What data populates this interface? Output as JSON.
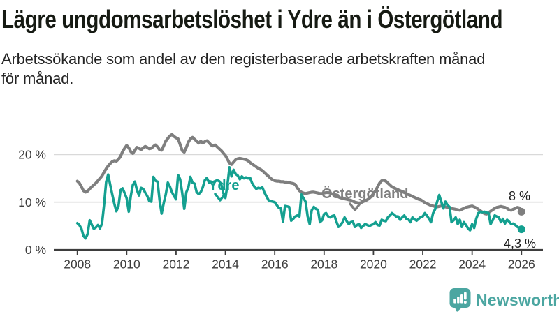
{
  "header": {
    "title": "Lägre ungdomsarbetslöshet i Ydre än i Östergötland",
    "subtitle_line_1": "Arbetssökande som andel av den registerbaserade arbetskraften månad",
    "subtitle_line_2": "för månad."
  },
  "chart_data": {
    "type": "line",
    "title": "Lägre ungdomsarbetslöshet i Ydre än i Östergötland",
    "unit": "%",
    "grid": "horizontal",
    "legend_position": "inline-labels",
    "colors": {
      "axis": "#3D3D3D",
      "gridline": "#D9D9D9",
      "tick_text": "#3D3D3D",
      "value_text": "#1D1D1D"
    },
    "x": {
      "start_year": 2008,
      "interval_months": 1,
      "tick_years": [
        2008,
        2010,
        2012,
        2014,
        2016,
        2018,
        2020,
        2022,
        2024,
        2026
      ],
      "tick_labels": [
        "2008",
        "2010",
        "2012",
        "2014",
        "2016",
        "2018",
        "2020",
        "2022",
        "2024",
        "2026"
      ]
    },
    "y": {
      "tick_values": [
        0,
        10,
        20
      ],
      "tick_labels": [
        "0 %",
        "10 %",
        "20 %"
      ],
      "range": [
        0,
        26
      ]
    },
    "series": [
      {
        "name": "Östergötland",
        "color": "#7F7F7F",
        "end_label": "8 %",
        "end_value": 8.0,
        "values": [
          14.4,
          14.0,
          13.2,
          12.4,
          12.1,
          12.3,
          12.8,
          13.2,
          13.6,
          14.0,
          14.5,
          15.0,
          15.5,
          16.3,
          17.0,
          17.6,
          18.1,
          18.5,
          18.7,
          18.6,
          19.0,
          19.6,
          20.6,
          21.3,
          21.9,
          21.4,
          20.6,
          20.2,
          20.9,
          21.5,
          21.3,
          21.0,
          21.4,
          21.7,
          21.5,
          21.2,
          21.3,
          21.7,
          22.0,
          21.6,
          21.0,
          20.9,
          21.8,
          22.8,
          23.4,
          23.9,
          24.2,
          23.8,
          23.5,
          23.3,
          22.1,
          20.8,
          20.5,
          21.5,
          22.6,
          23.3,
          23.6,
          23.2,
          22.8,
          22.4,
          22.8,
          22.4,
          22.7,
          22.9,
          22.5,
          22.0,
          21.8,
          22.0,
          21.6,
          21.2,
          20.8,
          20.3,
          19.8,
          19.0,
          18.2,
          17.9,
          18.4,
          18.9,
          19.1,
          19.2,
          19.1,
          19.0,
          18.9,
          18.7,
          18.3,
          18.0,
          17.7,
          17.4,
          17.1,
          16.9,
          16.6,
          16.2,
          15.8,
          15.4,
          15.0,
          14.7,
          14.5,
          14.4,
          14.4,
          14.3,
          14.3,
          14.2,
          14.2,
          14.1,
          14.0,
          13.9,
          13.7,
          13.0,
          12.4,
          12.1,
          11.9,
          11.8,
          11.9,
          12.0,
          12.1,
          12.1,
          12.0,
          11.9,
          11.8,
          11.8,
          11.9,
          12.0,
          12.0,
          11.9,
          11.7,
          11.5,
          11.3,
          11.1,
          10.9,
          10.8,
          10.7,
          10.6,
          10.5,
          10.4,
          10.2,
          10.0,
          9.9,
          9.8,
          9.9,
          10.1,
          10.3,
          10.5,
          10.8,
          11.2,
          11.8,
          12.4,
          13.2,
          14.0,
          14.5,
          14.6,
          14.4,
          14.0,
          13.6,
          13.2,
          13.0,
          12.8,
          12.6,
          12.4,
          12.2,
          12.0,
          11.8,
          11.6,
          11.4,
          11.2,
          11.0,
          10.8,
          10.6,
          10.5,
          10.2,
          9.9,
          9.7,
          9.5,
          9.3,
          9.2,
          9.1,
          9.0,
          9.1,
          9.2,
          9.1,
          9.0,
          8.9,
          8.8,
          8.7,
          8.6,
          8.5,
          8.4,
          8.3,
          8.5,
          8.7,
          8.9,
          9.0,
          9.1,
          9.2,
          9.0,
          8.8,
          8.5,
          8.2,
          7.9,
          7.6,
          7.5,
          7.8,
          8.1,
          8.4,
          8.7,
          8.9,
          9.0,
          9.1,
          9.0,
          8.9,
          8.7,
          8.4,
          8.3,
          8.5,
          8.7,
          8.9,
          8.8,
          8.0
        ]
      },
      {
        "name": "Ydre",
        "color": "#14A090",
        "end_label": "4,3 %",
        "end_value": 4.3,
        "values": [
          5.6,
          5.2,
          4.4,
          2.9,
          2.4,
          3.3,
          6.2,
          5.3,
          4.4,
          4.7,
          5.2,
          4.5,
          5.5,
          9.5,
          14.2,
          15.8,
          13.6,
          11.6,
          9.6,
          8.1,
          9.2,
          12.5,
          12.9,
          11.9,
          10.8,
          8.0,
          11.3,
          13.6,
          14.3,
          12.5,
          11.4,
          13.0,
          12.8,
          12.0,
          11.3,
          10.2,
          10.1,
          15.3,
          14.5,
          14.3,
          10.4,
          7.6,
          9.8,
          11.6,
          14.1,
          13.3,
          12.1,
          11.3,
          10.6,
          15.7,
          14.8,
          11.9,
          8.6,
          12.1,
          13.1,
          15.3,
          14.1,
          13.9,
          12.1,
          11.7,
          12.1,
          13.1,
          14.6,
          15.1,
          14.1,
          14.3,
          14.2,
          14.4,
          14.6,
          14.4,
          13.7,
          11.9,
          10.9,
          13.6,
          17.3,
          15.4,
          16.8,
          15.9,
          15.6,
          14.8,
          15.4,
          15.0,
          15.2,
          15.0,
          15.1,
          14.0,
          13.3,
          12.8,
          13.0,
          12.9,
          13.1,
          12.0,
          11.2,
          10.4,
          10.2,
          10.1,
          10.0,
          9.4,
          8.8,
          8.7,
          5.9,
          9.2,
          9.1,
          9.0,
          6.1,
          6.5,
          7.0,
          7.2,
          7.0,
          11.6,
          10.8,
          10.1,
          7.0,
          5.4,
          8.3,
          9.0,
          8.6,
          8.4,
          5.8,
          6.2,
          7.5,
          7.7,
          7.0,
          6.8,
          7.1,
          7.2,
          5.9,
          4.8,
          5.2,
          5.8,
          6.8,
          6.0,
          5.4,
          5.8,
          5.9,
          4.8,
          5.2,
          5.4,
          4.6,
          5.0,
          5.4,
          5.2,
          5.0,
          5.2,
          5.4,
          5.8,
          5.2,
          5.1,
          6.3,
          6.1,
          6.0,
          6.8,
          7.2,
          7.7,
          7.4,
          7.0,
          7.0,
          6.3,
          6.8,
          7.2,
          6.5,
          6.4,
          5.8,
          6.8,
          6.4,
          6.1,
          6.5,
          6.9,
          7.0,
          7.7,
          7.2,
          6.5,
          5.8,
          7.7,
          8.5,
          10.1,
          11.5,
          10.1,
          8.7,
          10.1,
          9.4,
          9.0,
          5.8,
          6.2,
          6.8,
          5.4,
          6.3,
          4.8,
          5.8,
          5.2,
          4.5,
          4.1,
          5.4,
          4.6,
          6.5,
          7.7,
          8.0,
          7.9,
          8.0,
          7.8,
          7.7,
          5.4,
          6.2,
          7.2,
          7.0,
          6.8,
          5.8,
          6.5,
          5.5,
          6.3,
          5.9,
          5.4,
          5.5,
          5.2,
          4.8,
          4.6,
          4.3
        ]
      }
    ]
  },
  "footer": {
    "brand": "Newsworthy",
    "brand_color": "#4BA6A1",
    "logo_icon": "bar-chart-speech-bubble-icon"
  }
}
